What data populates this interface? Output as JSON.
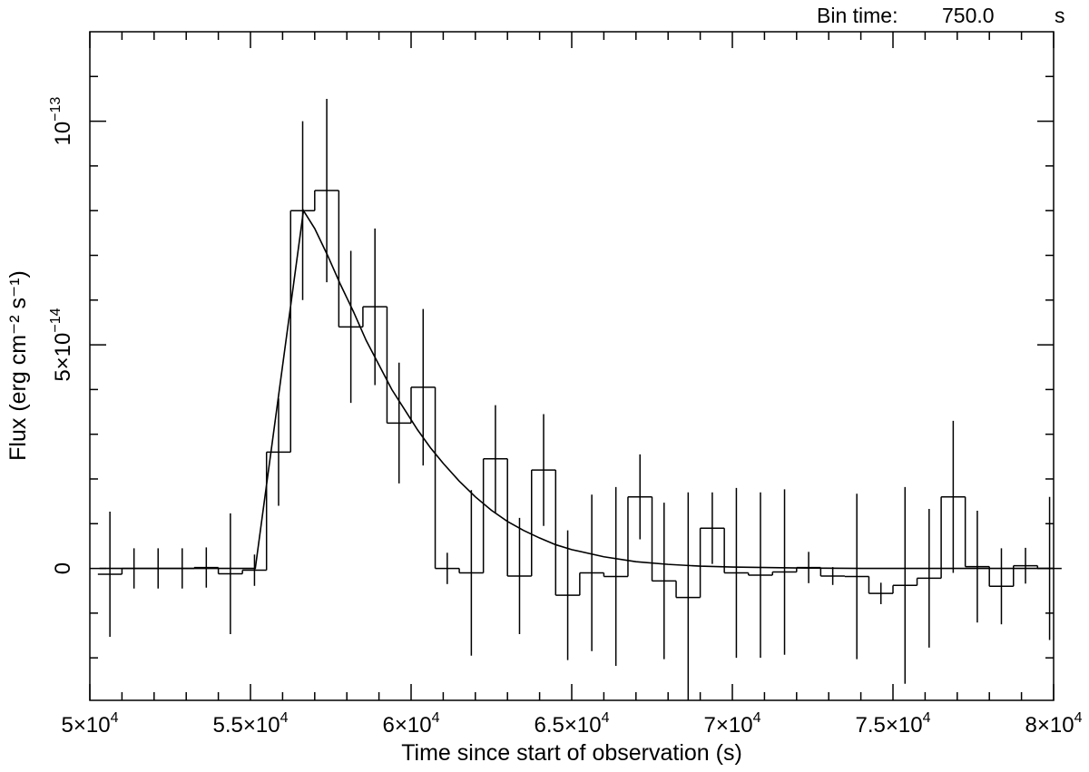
{
  "header": {
    "bin_label": "Bin time:",
    "bin_value": "750.0",
    "bin_unit": "s"
  },
  "chart_data": {
    "type": "line",
    "title": "",
    "xlabel": "Time since start of observation (s)",
    "ylabel": "Flux (erg cm⁻² s⁻¹)",
    "xlim": [
      50000,
      80000
    ],
    "ylim": [
      -2.95e-14,
      1.2e-13
    ],
    "x_tick_labels": [
      {
        "value": 50000,
        "mant": "5",
        "exp": "4"
      },
      {
        "value": 55000,
        "mant": "5.5",
        "exp": "4"
      },
      {
        "value": 60000,
        "mant": "6",
        "exp": "4"
      },
      {
        "value": 65000,
        "mant": "6.5",
        "exp": "4"
      },
      {
        "value": 70000,
        "mant": "7",
        "exp": "4"
      },
      {
        "value": 75000,
        "mant": "7.5",
        "exp": "4"
      },
      {
        "value": 80000,
        "mant": "8",
        "exp": "4"
      }
    ],
    "y_tick_labels": [
      {
        "value": 0,
        "mant": "0",
        "exp": ""
      },
      {
        "value": 5e-14,
        "mant": "5",
        "exp": "−14"
      },
      {
        "value": 1e-13,
        "mant": "",
        "exp": "−13"
      }
    ],
    "series": [
      {
        "style": "histogram-steps",
        "bin_width": 750,
        "x": [
          50625,
          51375,
          52125,
          52875,
          53625,
          54375,
          55125,
          55875,
          56625,
          57375,
          58125,
          58875,
          59625,
          60375,
          61125,
          61875,
          62625,
          63375,
          64125,
          64875,
          65625,
          66375,
          67125,
          67875,
          68625,
          69375,
          70125,
          70875,
          71625,
          72375,
          73125,
          73875,
          74625,
          75375,
          76125,
          76875,
          77625,
          78375,
          79125,
          79875
        ],
        "y": [
          -1.3e-15,
          0,
          0,
          0,
          2e-16,
          -1.2e-15,
          -4e-16,
          2.6e-14,
          8e-14,
          8.45e-14,
          5.4e-14,
          5.85e-14,
          3.25e-14,
          4.05e-14,
          0,
          -1e-15,
          2.45e-14,
          -1.7e-15,
          2.2e-14,
          -6e-15,
          -1e-15,
          -1.8e-15,
          1.6e-14,
          -2.8e-15,
          -6.5e-15,
          9e-15,
          -1e-15,
          -1.5e-15,
          -8e-16,
          2e-16,
          -1.7e-15,
          -1.8e-15,
          -5.6e-15,
          -3.8e-15,
          -2.2e-15,
          1.6e-14,
          4e-16,
          -4e-15,
          6e-16,
          0
        ],
        "yerr": [
          1.4e-14,
          4.5e-15,
          4.5e-15,
          4.5e-15,
          4.5e-15,
          1.35e-14,
          3.5e-15,
          1.2e-14,
          2e-14,
          2.05e-14,
          1.7e-14,
          1.75e-14,
          1.35e-14,
          1.75e-14,
          3.5e-15,
          1.85e-14,
          1.2e-14,
          1.3e-14,
          1.25e-14,
          1.45e-14,
          1.75e-14,
          2e-14,
          9.5e-15,
          1.75e-14,
          2.35e-14,
          8e-15,
          1.9e-14,
          1.85e-14,
          1.85e-14,
          3.5e-15,
          2e-15,
          1.85e-14,
          2.4e-15,
          2.2e-14,
          1.55e-14,
          1.7e-14,
          1.25e-14,
          8.5e-15,
          4e-15,
          1.6e-14
        ]
      },
      {
        "style": "model-curve",
        "x": [
          50300,
          55150,
          56650,
          57000,
          57400,
          57800,
          58200,
          58600,
          59000,
          59400,
          59800,
          60200,
          60600,
          61000,
          61500,
          62000,
          62500,
          63000,
          63500,
          64000,
          64500,
          65000,
          66000,
          67000,
          68000,
          69000,
          70000,
          72000,
          74000,
          77000,
          80000
        ],
        "y": [
          0,
          0,
          8e-14,
          7.6e-14,
          7e-14,
          6.35e-14,
          5.75e-14,
          5.1e-14,
          4.55e-14,
          4e-14,
          3.55e-14,
          3.1e-14,
          2.7e-14,
          2.35e-14,
          1.95e-14,
          1.6e-14,
          1.3e-14,
          1.05e-14,
          8.5e-15,
          6.8e-15,
          5.3e-15,
          4.2e-15,
          2.6e-15,
          1.5e-15,
          9e-16,
          5e-16,
          3e-16,
          1e-16,
          0,
          0,
          0
        ]
      }
    ]
  }
}
